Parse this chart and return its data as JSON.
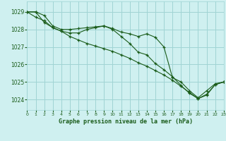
{
  "title": "Graphe pression niveau de la mer (hPa)",
  "background_color": "#cff0f0",
  "grid_color": "#a0d4d4",
  "line_color": "#1a5c1a",
  "x_ticks": [
    0,
    1,
    2,
    3,
    4,
    5,
    6,
    7,
    8,
    9,
    10,
    11,
    12,
    13,
    14,
    15,
    16,
    17,
    18,
    19,
    20,
    21,
    22,
    23
  ],
  "ylim": [
    1023.4,
    1029.6
  ],
  "yticks": [
    1024,
    1025,
    1026,
    1027,
    1028,
    1029
  ],
  "series1": [
    1029.0,
    1029.0,
    1028.8,
    1028.2,
    1028.0,
    1028.0,
    1028.05,
    1028.1,
    1028.15,
    1028.2,
    1028.05,
    1027.85,
    1027.75,
    1027.6,
    1027.75,
    1027.55,
    1027.0,
    1025.25,
    1025.0,
    1024.5,
    1024.1,
    1024.5,
    1024.9,
    1025.0
  ],
  "series2": [
    1029.0,
    1028.7,
    1028.5,
    1028.1,
    1027.9,
    1027.8,
    1027.8,
    1028.0,
    1028.1,
    1028.2,
    1028.0,
    1027.6,
    1027.2,
    1026.7,
    1026.55,
    1026.05,
    1025.7,
    1025.3,
    1024.8,
    1024.35,
    1024.05,
    1024.3,
    1024.85,
    1025.0
  ],
  "series3": [
    1029.0,
    1029.0,
    1028.4,
    1028.1,
    1027.9,
    1027.6,
    1027.4,
    1027.2,
    1027.05,
    1026.9,
    1026.75,
    1026.55,
    1026.35,
    1026.1,
    1025.9,
    1025.65,
    1025.4,
    1025.1,
    1024.75,
    1024.4,
    1024.05,
    1024.25,
    1024.85,
    1025.0
  ]
}
